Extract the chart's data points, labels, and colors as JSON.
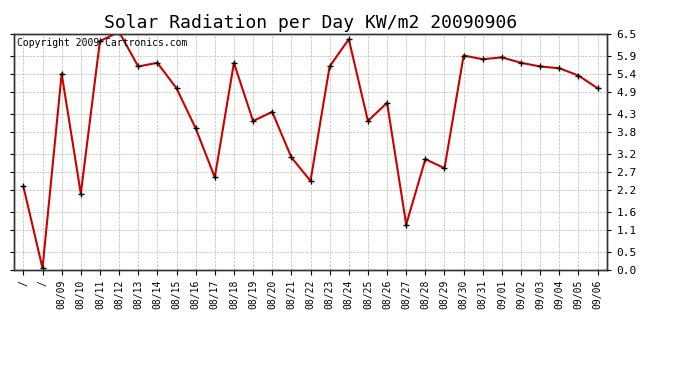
{
  "title": "Solar Radiation per Day KW/m2 20090906",
  "copyright": "Copyright 2009 Cartronics.com",
  "x_labels": [
    "/",
    "/",
    "08/09",
    "08/10",
    "08/11",
    "08/12",
    "08/13",
    "08/14",
    "08/15",
    "08/16",
    "08/17",
    "08/18",
    "08/19",
    "08/20",
    "08/21",
    "08/22",
    "08/23",
    "08/24",
    "08/25",
    "08/26",
    "08/27",
    "08/28",
    "08/29",
    "08/30",
    "08/31",
    "09/01",
    "09/02",
    "09/03",
    "09/04",
    "09/05",
    "09/06"
  ],
  "y_values": [
    2.3,
    0.05,
    5.4,
    2.1,
    6.3,
    6.55,
    5.6,
    5.7,
    5.0,
    3.9,
    2.55,
    5.7,
    4.1,
    4.35,
    3.1,
    2.45,
    5.6,
    6.35,
    4.1,
    4.6,
    1.25,
    3.05,
    2.8,
    5.9,
    5.8,
    5.85,
    5.7,
    5.6,
    5.55,
    5.35,
    5.0
  ],
  "line_color": "#cc0000",
  "marker": "+",
  "marker_size": 5,
  "marker_color": "#000000",
  "background_color": "#ffffff",
  "grid_color": "#bbbbbb",
  "ylim": [
    0.0,
    6.5
  ],
  "yticks": [
    0.0,
    0.5,
    1.1,
    1.6,
    2.2,
    2.7,
    3.2,
    3.8,
    4.3,
    4.9,
    5.4,
    5.9,
    6.5
  ],
  "title_fontsize": 13,
  "copyright_fontsize": 7
}
